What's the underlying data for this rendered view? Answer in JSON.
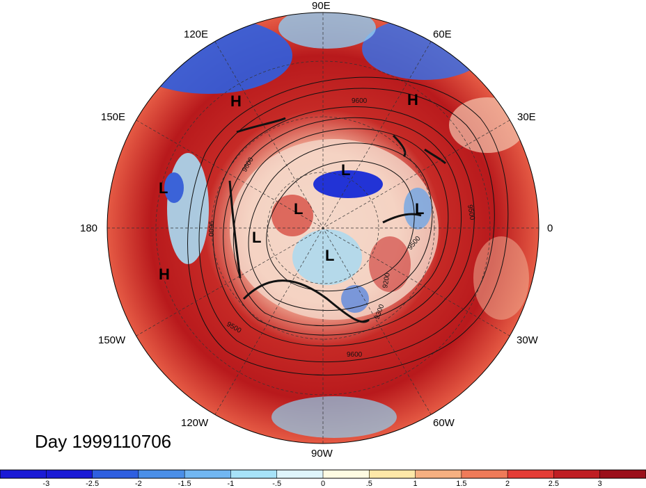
{
  "title": "Day 1999110706",
  "longitude_labels": [
    {
      "id": "lon-90e",
      "text": "90E"
    },
    {
      "id": "lon-60e",
      "text": "60E"
    },
    {
      "id": "lon-30e",
      "text": "30E"
    },
    {
      "id": "lon-0",
      "text": "0"
    },
    {
      "id": "lon-30w",
      "text": "30W"
    },
    {
      "id": "lon-60w",
      "text": "60W"
    },
    {
      "id": "lon-90w",
      "text": "90W"
    },
    {
      "id": "lon-120w",
      "text": "120W"
    },
    {
      "id": "lon-150w",
      "text": "150W"
    },
    {
      "id": "lon-180",
      "text": "180"
    },
    {
      "id": "lon-150e",
      "text": "150E"
    },
    {
      "id": "lon-120e",
      "text": "120E"
    }
  ],
  "pressure_centers": [
    {
      "type": "H"
    },
    {
      "type": "H"
    },
    {
      "type": "H"
    },
    {
      "type": "L"
    },
    {
      "type": "L"
    },
    {
      "type": "L"
    },
    {
      "type": "L"
    },
    {
      "type": "L"
    },
    {
      "type": "L"
    }
  ],
  "contour_labels": [
    "9600",
    "9500",
    "9200",
    "9300",
    "9500",
    "9600",
    "9500",
    "9600",
    "9600"
  ],
  "colorbar": {
    "colors": [
      "#1a1ad6",
      "#2e5fe0",
      "#4a8fe8",
      "#71b7f2",
      "#a7e3f8",
      "#dff5fb",
      "#fefbe2",
      "#fde8a8",
      "#f6b081",
      "#ef7b59",
      "#e43c35",
      "#bf1e23",
      "#9b0f1a"
    ],
    "tick_labels": [
      "-3",
      "-2.5",
      "-2",
      "-1.5",
      "-1",
      "-.5",
      "0",
      ".5",
      "1",
      "1.5",
      "2",
      "2.5",
      "3"
    ]
  },
  "map_colors": {
    "ring": "#c22a26",
    "ring_light": "#e8754f",
    "cold": "#2a4fd8",
    "light_blue": "#9fd6f2",
    "contour": "#111111"
  }
}
